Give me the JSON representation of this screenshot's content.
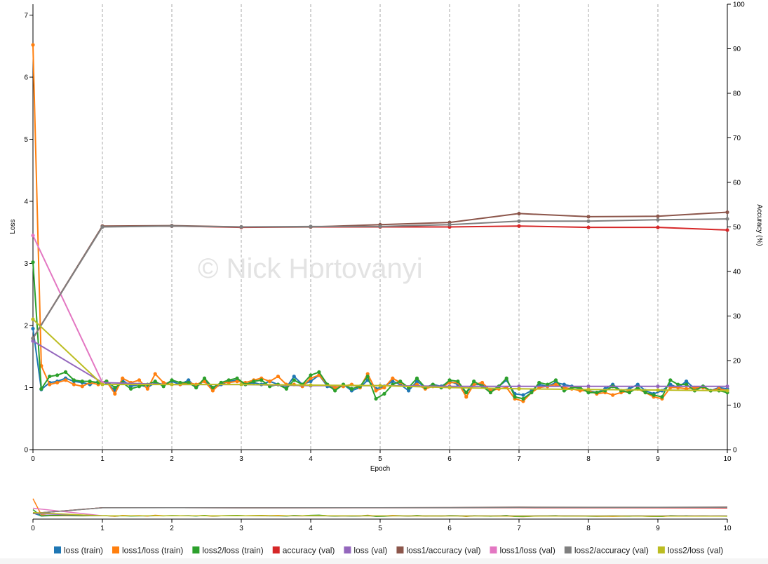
{
  "watermark": "© Nick Hortovanyi",
  "chart_data": {
    "type": "line",
    "xlabel": "Epoch",
    "ylabel_left": "Loss",
    "ylabel_right": "Accuracy (%)",
    "xlim": [
      0,
      10
    ],
    "ylim_left": [
      0,
      7.2
    ],
    "ylim_right": [
      0,
      100
    ],
    "x_ticks": [
      "0",
      "1",
      "2",
      "3",
      "4",
      "5",
      "6",
      "7",
      "8",
      "9",
      "10"
    ],
    "y_left_ticks": [
      "0",
      "1",
      "2",
      "3",
      "4",
      "5",
      "6",
      "7"
    ],
    "y_right_ticks": [
      "0",
      "10",
      "20",
      "30",
      "40",
      "50",
      "60",
      "70",
      "80",
      "90",
      "100"
    ],
    "grid": "vertical dashed at each epoch",
    "legend_position": "bottom",
    "has_context_brush": true,
    "series": [
      {
        "name": "loss (train)",
        "color": "#1f77b4",
        "axis": "left",
        "x": [
          0,
          0.12,
          0.24,
          0.35,
          0.47,
          0.59,
          0.71,
          0.82,
          0.94,
          1.06,
          1.18,
          1.29,
          1.41,
          1.53,
          1.65,
          1.76,
          1.88,
          2.0,
          2.12,
          2.24,
          2.35,
          2.47,
          2.59,
          2.71,
          2.82,
          2.94,
          3.06,
          3.18,
          3.29,
          3.41,
          3.53,
          3.65,
          3.76,
          3.88,
          4.0,
          4.12,
          4.24,
          4.35,
          4.47,
          4.59,
          4.71,
          4.82,
          4.94,
          5.06,
          5.18,
          5.29,
          5.41,
          5.53,
          5.65,
          5.76,
          5.88,
          6.0,
          6.12,
          6.24,
          6.35,
          6.47,
          6.59,
          6.71,
          6.82,
          6.94,
          7.06,
          7.18,
          7.29,
          7.41,
          7.53,
          7.65,
          7.76,
          7.88,
          8.0,
          8.12,
          8.24,
          8.35,
          8.47,
          8.59,
          8.71,
          8.82,
          8.94,
          9.06,
          9.18,
          9.29,
          9.41,
          9.53,
          9.65,
          9.76,
          9.88,
          10.0
        ],
        "y": [
          1.95,
          0.97,
          1.08,
          1.1,
          1.15,
          1.1,
          1.08,
          1.05,
          1.1,
          1.08,
          0.95,
          1.12,
          1.02,
          1.05,
          1.0,
          1.08,
          1.05,
          1.1,
          1.05,
          1.12,
          1.0,
          1.12,
          0.98,
          1.05,
          1.1,
          1.12,
          1.05,
          1.08,
          1.05,
          1.1,
          1.05,
          1.0,
          1.18,
          1.05,
          1.1,
          1.2,
          1.02,
          0.98,
          1.05,
          0.95,
          1.0,
          1.12,
          0.98,
          1.02,
          1.1,
          1.05,
          0.95,
          1.1,
          1.0,
          1.05,
          1.02,
          1.1,
          1.05,
          0.92,
          1.05,
          1.05,
          0.95,
          1.02,
          1.12,
          0.9,
          0.88,
          0.95,
          1.05,
          1.02,
          1.08,
          1.05,
          1.02,
          0.98,
          0.95,
          0.92,
          0.98,
          1.05,
          0.95,
          0.98,
          1.05,
          0.95,
          0.9,
          0.95,
          1.05,
          1.0,
          1.1,
          0.98,
          1.02,
          0.95,
          1.0,
          0.98
        ]
      },
      {
        "name": "loss1/loss (train)",
        "color": "#ff7f0e",
        "axis": "left",
        "x": [
          0,
          0.12,
          0.24,
          0.35,
          0.47,
          0.59,
          0.71,
          0.82,
          0.94,
          1.06,
          1.18,
          1.29,
          1.41,
          1.53,
          1.65,
          1.76,
          1.88,
          2.0,
          2.12,
          2.24,
          2.35,
          2.47,
          2.59,
          2.71,
          2.82,
          2.94,
          3.06,
          3.18,
          3.29,
          3.41,
          3.53,
          3.65,
          3.76,
          3.88,
          4.0,
          4.12,
          4.24,
          4.35,
          4.47,
          4.59,
          4.71,
          4.82,
          4.94,
          5.06,
          5.18,
          5.29,
          5.41,
          5.53,
          5.65,
          5.76,
          5.88,
          6.0,
          6.12,
          6.24,
          6.35,
          6.47,
          6.59,
          6.71,
          6.82,
          6.94,
          7.06,
          7.18,
          7.29,
          7.41,
          7.53,
          7.65,
          7.76,
          7.88,
          8.0,
          8.12,
          8.24,
          8.35,
          8.47,
          8.59,
          8.71,
          8.82,
          8.94,
          9.06,
          9.18,
          9.29,
          9.41,
          9.53,
          9.65,
          9.76,
          9.88,
          10.0
        ],
        "y": [
          6.52,
          1.35,
          1.05,
          1.08,
          1.12,
          1.05,
          1.02,
          1.08,
          1.05,
          1.1,
          0.9,
          1.15,
          1.08,
          1.12,
          0.98,
          1.22,
          1.08,
          1.05,
          1.05,
          1.08,
          1.05,
          1.1,
          0.95,
          1.08,
          1.08,
          1.1,
          1.08,
          1.12,
          1.15,
          1.1,
          1.18,
          1.05,
          1.05,
          1.02,
          1.15,
          1.2,
          1.05,
          1.0,
          1.02,
          1.05,
          1.0,
          1.22,
          0.95,
          1.0,
          1.15,
          1.08,
          1.0,
          1.05,
          0.98,
          1.02,
          1.0,
          1.08,
          1.08,
          0.85,
          1.05,
          1.08,
          0.95,
          0.98,
          1.0,
          0.82,
          0.78,
          0.92,
          1.0,
          1.02,
          1.05,
          1.0,
          0.98,
          0.95,
          0.95,
          0.9,
          0.92,
          0.88,
          0.92,
          0.95,
          0.98,
          0.92,
          0.85,
          0.82,
          1.0,
          1.0,
          0.98,
          1.0,
          1.0,
          0.95,
          0.98,
          0.95
        ]
      },
      {
        "name": "loss2/loss (train)",
        "color": "#2ca02c",
        "axis": "left",
        "x": [
          0,
          0.12,
          0.24,
          0.35,
          0.47,
          0.59,
          0.71,
          0.82,
          0.94,
          1.06,
          1.18,
          1.29,
          1.41,
          1.53,
          1.65,
          1.76,
          1.88,
          2.0,
          2.12,
          2.24,
          2.35,
          2.47,
          2.59,
          2.71,
          2.82,
          2.94,
          3.06,
          3.18,
          3.29,
          3.41,
          3.53,
          3.65,
          3.76,
          3.88,
          4.0,
          4.12,
          4.24,
          4.35,
          4.47,
          4.59,
          4.71,
          4.82,
          4.94,
          5.06,
          5.18,
          5.29,
          5.41,
          5.53,
          5.65,
          5.76,
          5.88,
          6.0,
          6.12,
          6.24,
          6.35,
          6.47,
          6.59,
          6.71,
          6.82,
          6.94,
          7.06,
          7.18,
          7.29,
          7.41,
          7.53,
          7.65,
          7.76,
          7.88,
          8.0,
          8.12,
          8.24,
          8.35,
          8.47,
          8.59,
          8.71,
          8.82,
          8.94,
          9.06,
          9.18,
          9.29,
          9.41,
          9.53,
          9.65,
          9.76,
          9.88,
          10.0
        ],
        "y": [
          3.02,
          0.98,
          1.18,
          1.2,
          1.25,
          1.12,
          1.1,
          1.1,
          1.08,
          1.1,
          1.0,
          1.08,
          0.98,
          1.02,
          1.05,
          1.1,
          1.02,
          1.12,
          1.08,
          1.08,
          1.0,
          1.15,
          1.0,
          1.08,
          1.12,
          1.15,
          1.05,
          1.1,
          1.12,
          1.02,
          1.05,
          0.98,
          1.12,
          1.05,
          1.2,
          1.25,
          1.05,
          0.95,
          1.05,
          0.98,
          1.02,
          1.18,
          0.82,
          0.9,
          1.05,
          1.1,
          1.0,
          1.15,
          1.0,
          1.05,
          1.0,
          1.12,
          1.1,
          0.92,
          1.1,
          1.02,
          0.92,
          1.02,
          1.15,
          0.85,
          0.82,
          0.92,
          1.08,
          1.05,
          1.12,
          0.95,
          1.0,
          1.0,
          0.92,
          0.92,
          0.95,
          1.02,
          0.95,
          0.92,
          1.0,
          0.92,
          0.88,
          0.85,
          1.12,
          1.05,
          1.05,
          0.95,
          1.02,
          0.95,
          0.95,
          0.92
        ]
      },
      {
        "name": "accuracy (val)",
        "color": "#d62728",
        "axis": "right",
        "x": [
          0,
          1,
          2,
          3,
          4,
          5,
          6,
          7,
          8,
          9,
          10
        ],
        "y": [
          25.0,
          50.1,
          50.2,
          49.9,
          50.0,
          50.0,
          50.0,
          50.2,
          49.9,
          49.9,
          49.3
        ]
      },
      {
        "name": "loss (val)",
        "color": "#9467bd",
        "axis": "left",
        "x": [
          0,
          1,
          2,
          3,
          4,
          5,
          6,
          7,
          8,
          9,
          10
        ],
        "y": [
          1.75,
          1.08,
          1.05,
          1.05,
          1.03,
          1.03,
          1.02,
          1.02,
          1.02,
          1.02,
          1.02
        ]
      },
      {
        "name": "loss1/accuracy (val)",
        "color": "#8c564b",
        "axis": "right",
        "x": [
          0,
          1,
          2,
          3,
          4,
          5,
          6,
          7,
          8,
          9,
          10
        ],
        "y": [
          25.0,
          50.2,
          50.3,
          50.0,
          50.0,
          50.5,
          51.0,
          53.0,
          52.3,
          52.4,
          53.3
        ]
      },
      {
        "name": "loss1/loss (val)",
        "color": "#e377c2",
        "axis": "left",
        "x": [
          0,
          1
        ],
        "y": [
          3.45,
          1.08
        ]
      },
      {
        "name": "loss2/accuracy (val)",
        "color": "#7f7f7f",
        "axis": "right",
        "x": [
          0,
          1,
          2,
          3,
          4,
          5,
          6,
          7,
          8,
          9,
          10
        ],
        "y": [
          25.0,
          50.0,
          50.2,
          50.0,
          50.1,
          50.1,
          50.5,
          51.3,
          51.3,
          51.6,
          51.8
        ]
      },
      {
        "name": "loss2/loss (val)",
        "color": "#bcbd22",
        "axis": "left",
        "x": [
          0,
          1,
          2,
          3,
          4,
          5,
          6,
          7,
          8,
          9,
          10
        ],
        "y": [
          2.1,
          1.05,
          1.05,
          1.05,
          1.04,
          1.03,
          1.0,
          0.98,
          0.97,
          0.96,
          0.95
        ]
      }
    ]
  }
}
